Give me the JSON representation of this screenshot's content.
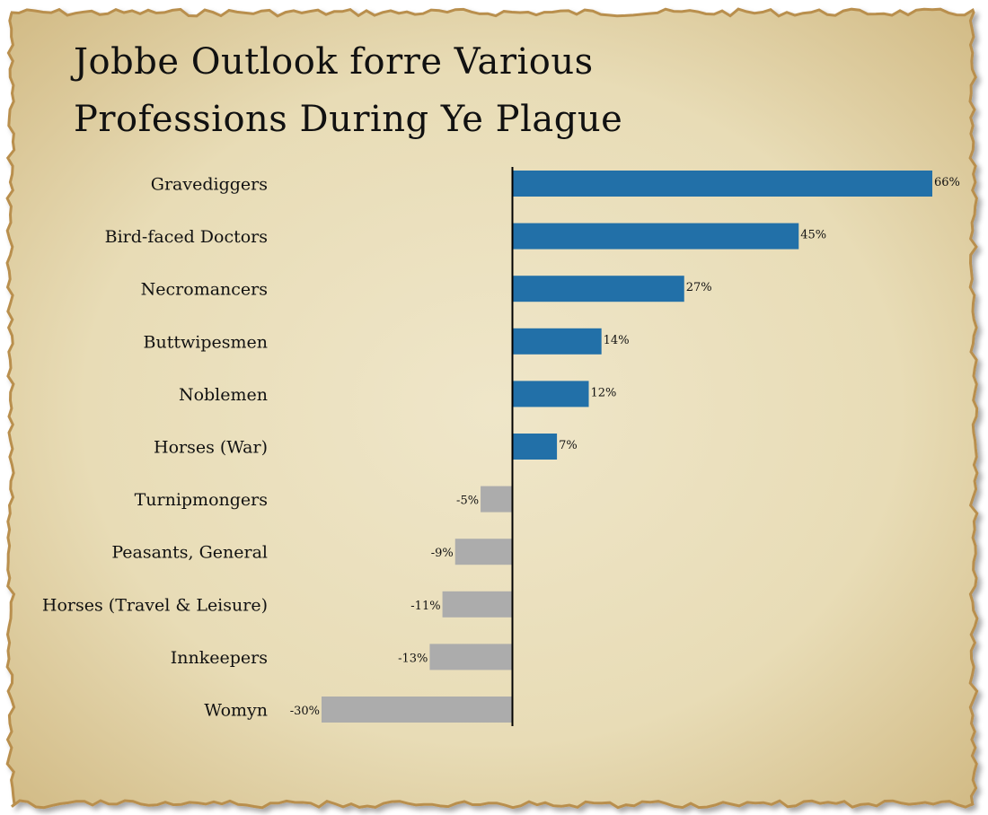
{
  "title_lines": [
    "Jobbe Outlook forre Various",
    "Professions During Ye Plague"
  ],
  "colors": {
    "positive": "#2270a8",
    "negative": "#acacac",
    "axis": "#000000",
    "text": "#111111",
    "parchment": "#ece2c2",
    "parchment_edge": "#b98f4e"
  },
  "chart_data": {
    "type": "bar",
    "orientation": "horizontal",
    "title": "Jobbe Outlook forre Various Professions During Ye Plague",
    "xlabel": "",
    "ylabel": "",
    "xlim": [
      -30,
      66
    ],
    "grid": false,
    "legend": "none",
    "categories": [
      "Gravediggers",
      "Bird-faced Doctors",
      "Necromancers",
      "Buttwipesmen",
      "Noblemen",
      "Horses (War)",
      "Turnipmongers",
      "Peasants, General",
      "Horses (Travel & Leisure)",
      "Innkeepers",
      "Womyn"
    ],
    "values": [
      66,
      45,
      27,
      14,
      12,
      7,
      -5,
      -9,
      -11,
      -13,
      -30
    ],
    "value_labels": [
      "66%",
      "45%",
      "27%",
      "14%",
      "12%",
      "7%",
      "-5%",
      "-9%",
      "-11%",
      "-13%",
      "-30%"
    ]
  }
}
